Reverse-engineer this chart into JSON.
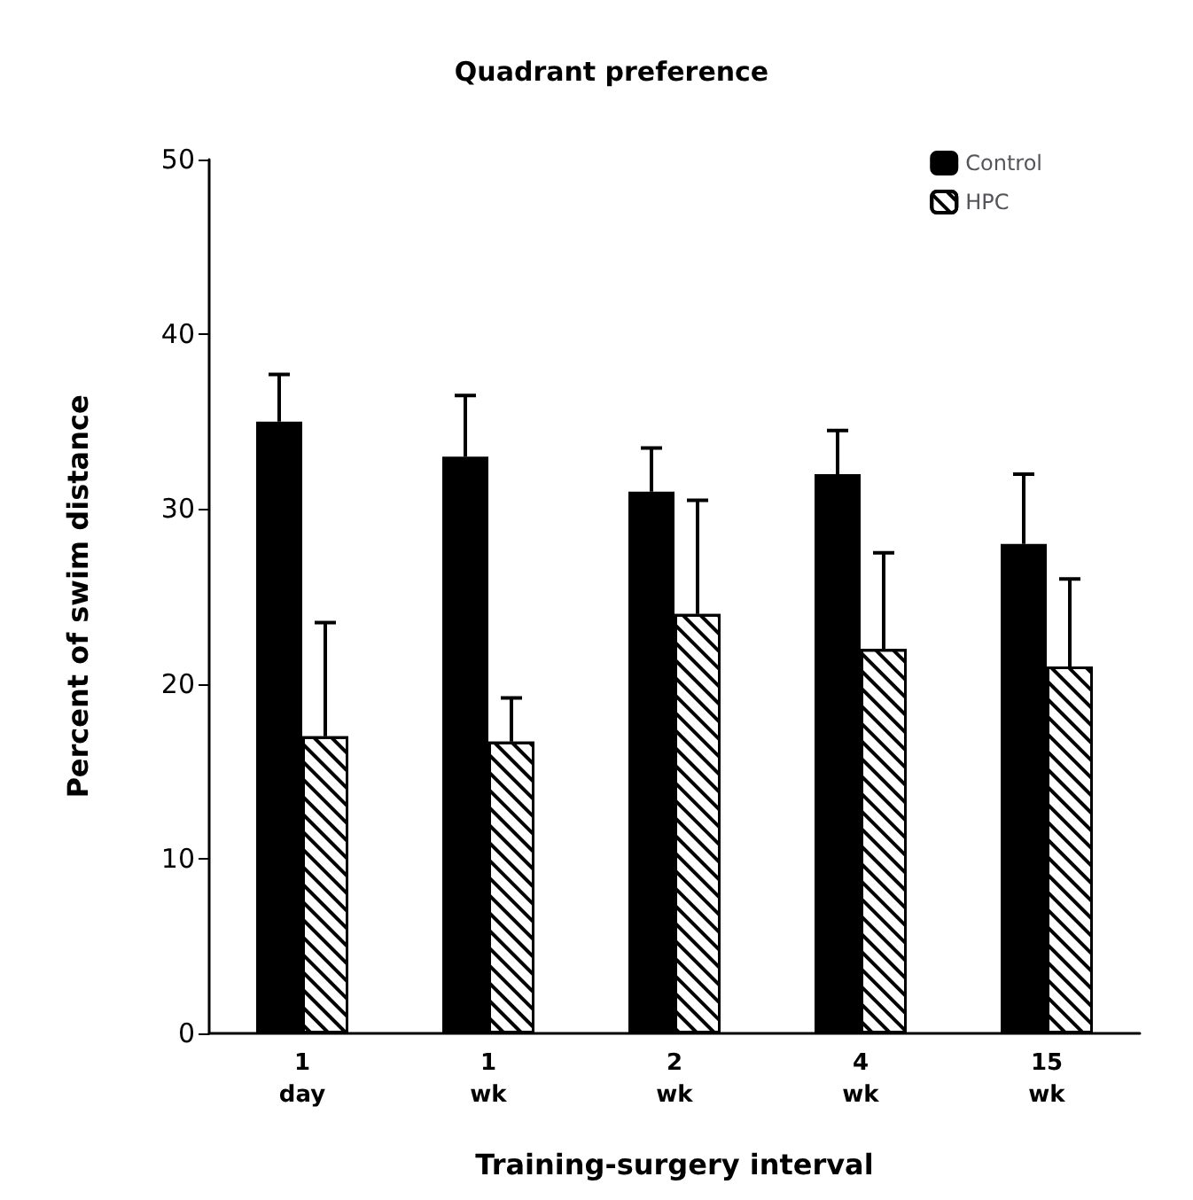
{
  "chart_data": {
    "type": "bar",
    "title": "Quadrant preference",
    "xlabel": "Training-surgery interval",
    "ylabel": "Percent of swim distance",
    "categories": [
      "1\nday",
      "1\nwk",
      "2\nwk",
      "4\nwk",
      "15\nwk"
    ],
    "series": [
      {
        "name": "Control",
        "color": "#000000",
        "values": [
          35,
          33,
          31,
          32,
          28
        ],
        "errors": [
          [
            35,
            37.7
          ],
          [
            33,
            36.5
          ],
          [
            31,
            33.5
          ],
          [
            32,
            34.5
          ],
          [
            28,
            32
          ]
        ]
      },
      {
        "name": "HPC",
        "color": "#ffffff",
        "values": [
          17,
          16.7,
          24,
          22,
          21
        ],
        "errors": [
          [
            17,
            23.5
          ],
          [
            16.7,
            19.2
          ],
          [
            24,
            30.5
          ],
          [
            22,
            27.5
          ],
          [
            21,
            26
          ]
        ]
      }
    ],
    "ylim": [
      0,
      50
    ],
    "yticks": [
      0,
      10,
      20,
      30,
      40,
      50
    ],
    "grid": false,
    "legend": "top right"
  }
}
